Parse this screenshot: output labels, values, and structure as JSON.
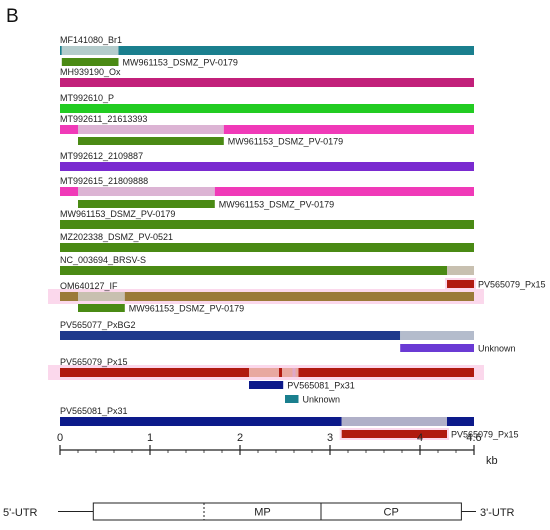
{
  "panel_label": "B",
  "scale": {
    "max": 4.6,
    "unit": "kb",
    "ticks": [
      {
        "value": 0,
        "label": "0"
      },
      {
        "value": 1,
        "label": "1"
      },
      {
        "value": 2,
        "label": "2"
      },
      {
        "value": 3,
        "label": "3"
      },
      {
        "value": 4,
        "label": "4"
      },
      {
        "value": 4.6,
        "label": "4.6"
      }
    ]
  },
  "colors": {
    "teal": "#1a7f8e",
    "magenta": "#c2207a",
    "green": "#22cc22",
    "pink": "#f03ab8",
    "pale_pink": "#dcb4d4",
    "pale_teal": "#b4cccc",
    "purple": "#7a2ad0",
    "olive_green": "#4a8a14",
    "olive_brown": "#9a7a38",
    "pale_olive": "#c8c0b0",
    "blue": "#1f3a8c",
    "pale_blue": "#b4bccc",
    "violet": "#6a3ad4",
    "dark_red": "#b01a10",
    "light_red": "#e8a8a0",
    "navy": "#0c1a8a",
    "pale_navy": "#b0b0c8",
    "highlight": "#fbd8ec",
    "pink_marker": "#e0a8c8"
  },
  "genomes": [
    {
      "name": "MF141080_Br1",
      "segments": [
        {
          "from": 0,
          "to": 0.02,
          "color": "teal"
        },
        {
          "from": 0.02,
          "to": 0.65,
          "color": "pale_teal"
        },
        {
          "from": 0.65,
          "to": 4.6,
          "color": "teal"
        }
      ],
      "hits": [
        {
          "from": 0.02,
          "to": 0.65,
          "color": "olive_green",
          "label": "MW961153_DSMZ_PV-0179"
        }
      ]
    },
    {
      "name": "MH939190_Ox",
      "segments": [
        {
          "from": 0,
          "to": 4.6,
          "color": "magenta"
        }
      ],
      "hits": []
    },
    {
      "name": "MT992610_P",
      "segments": [
        {
          "from": 0,
          "to": 4.6,
          "color": "green"
        }
      ],
      "hits": []
    },
    {
      "name": "MT992611_21613393",
      "segments": [
        {
          "from": 0,
          "to": 0.2,
          "color": "pink"
        },
        {
          "from": 0.2,
          "to": 1.82,
          "color": "pale_pink"
        },
        {
          "from": 1.82,
          "to": 4.6,
          "color": "pink"
        }
      ],
      "hits": [
        {
          "from": 0.2,
          "to": 1.82,
          "color": "olive_green",
          "label": "MW961153_DSMZ_PV-0179"
        }
      ]
    },
    {
      "name": "MT992612_2109887",
      "segments": [
        {
          "from": 0,
          "to": 4.6,
          "color": "purple"
        }
      ],
      "hits": []
    },
    {
      "name": "MT992615_21809888",
      "segments": [
        {
          "from": 0,
          "to": 0.2,
          "color": "pink"
        },
        {
          "from": 0.2,
          "to": 1.72,
          "color": "pale_pink"
        },
        {
          "from": 1.72,
          "to": 4.6,
          "color": "pink"
        }
      ],
      "hits": [
        {
          "from": 0.2,
          "to": 1.72,
          "color": "olive_green",
          "label": "MW961153_DSMZ_PV-0179"
        }
      ]
    },
    {
      "name": "MW961153_DSMZ_PV-0179",
      "segments": [
        {
          "from": 0,
          "to": 4.6,
          "color": "olive_green"
        }
      ],
      "hits": []
    },
    {
      "name": "MZ202338_DSMZ_PV-0521",
      "segments": [
        {
          "from": 0,
          "to": 4.6,
          "color": "olive_green"
        }
      ],
      "hits": []
    },
    {
      "name": "NC_003694_BRSV-S",
      "segments": [
        {
          "from": 0,
          "to": 4.3,
          "color": "olive_green"
        },
        {
          "from": 4.3,
          "to": 4.6,
          "color": "pale_olive"
        }
      ],
      "hits": [
        {
          "from": 4.3,
          "to": 4.6,
          "color": "dark_red",
          "label": "PV565079_Px15",
          "highlight": true
        }
      ]
    },
    {
      "name": "OM640127_IF",
      "highlight": true,
      "segments": [
        {
          "from": 0,
          "to": 0.2,
          "color": "olive_brown"
        },
        {
          "from": 0.2,
          "to": 0.72,
          "color": "pale_olive"
        },
        {
          "from": 0.72,
          "to": 4.6,
          "color": "olive_brown"
        }
      ],
      "hits": [
        {
          "from": 0.2,
          "to": 0.72,
          "color": "olive_green",
          "label": "MW961153_DSMZ_PV-0179"
        }
      ]
    },
    {
      "name": "PV565077_PxBG2",
      "segments": [
        {
          "from": 0,
          "to": 3.78,
          "color": "blue"
        },
        {
          "from": 3.78,
          "to": 4.6,
          "color": "pale_blue"
        }
      ],
      "hits": [
        {
          "from": 3.78,
          "to": 4.6,
          "color": "violet",
          "label": "Unknown"
        }
      ]
    },
    {
      "name": "PV565079_Px15",
      "highlight": true,
      "segments": [
        {
          "from": 0,
          "to": 2.1,
          "color": "dark_red"
        },
        {
          "from": 2.1,
          "to": 2.65,
          "color": "light_red"
        },
        {
          "from": 2.65,
          "to": 4.6,
          "color": "dark_red"
        }
      ],
      "markers": [
        {
          "at": 2.45,
          "color": "dark_red"
        },
        {
          "at": 2.6,
          "color": "pink_marker"
        }
      ],
      "hits": [
        {
          "from": 2.1,
          "to": 2.48,
          "color": "navy",
          "label": "PV565081_Px31"
        },
        {
          "from": 2.5,
          "to": 2.65,
          "color": "teal",
          "label": "Unknown"
        }
      ]
    },
    {
      "name": "PV565081_Px31",
      "segments": [
        {
          "from": 0,
          "to": 3.13,
          "color": "navy"
        },
        {
          "from": 3.13,
          "to": 4.3,
          "color": "pale_navy"
        },
        {
          "from": 4.3,
          "to": 4.6,
          "color": "navy"
        }
      ],
      "hits": [
        {
          "from": 3.13,
          "to": 4.3,
          "color": "dark_red",
          "label": "PV565079_Px15",
          "highlight": true
        }
      ]
    }
  ],
  "genome_map": {
    "left_label": "5'-UTR",
    "right_label": "3'-UTR",
    "box_from": 0.37,
    "box_to": 4.46,
    "dashed_at": 1.6,
    "divider_at": 2.9,
    "regions": [
      {
        "label": "MP",
        "from": 1.6,
        "to": 2.9
      },
      {
        "label": "CP",
        "from": 2.9,
        "to": 4.46
      }
    ]
  }
}
